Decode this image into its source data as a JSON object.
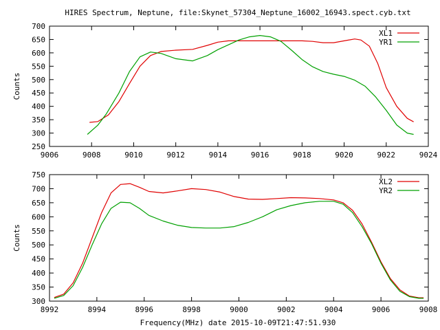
{
  "title": "HIRES Spectrum, Neptune, file:Skynet_57304_Neptune_16002_16943.spect.cyb.txt",
  "footer": "Frequency(MHz) date 2015-10-09T21:47:51.930",
  "colors": {
    "series1": "#e00000",
    "series2": "#00a000",
    "axis": "#000000",
    "background": "#ffffff"
  },
  "chart_data": [
    {
      "type": "line",
      "ylabel": "Counts",
      "xlabel": "",
      "xlim": [
        9006,
        9024
      ],
      "ylim": [
        250,
        700
      ],
      "xticks": [
        9006,
        9008,
        9010,
        9012,
        9014,
        9016,
        9018,
        9020,
        9022,
        9024
      ],
      "yticks": [
        250,
        300,
        350,
        400,
        450,
        500,
        550,
        600,
        650,
        700
      ],
      "grid": false,
      "legend": "top-right",
      "series": [
        {
          "name": "XL1",
          "color": "#e00000",
          "x": [
            9007.9,
            9008.3,
            9008.8,
            9009.3,
            9009.8,
            9010.3,
            9010.8,
            9011.3,
            9012,
            9012.8,
            9013.5,
            9014,
            9014.5,
            9015,
            9016,
            9017,
            9018,
            9018.5,
            9019,
            9019.5,
            9020,
            9020.5,
            9020.8,
            9021.2,
            9021.6,
            9022,
            9022.5,
            9023,
            9023.3
          ],
          "y": [
            340,
            343,
            368,
            418,
            485,
            550,
            590,
            605,
            610,
            613,
            628,
            640,
            645,
            645,
            645,
            645,
            645,
            643,
            638,
            638,
            645,
            652,
            648,
            625,
            560,
            470,
            400,
            355,
            342
          ]
        },
        {
          "name": "YR1",
          "color": "#00a000",
          "x": [
            9007.8,
            9008.3,
            9008.7,
            9009.3,
            9009.8,
            9010.3,
            9010.8,
            9011.3,
            9012,
            9012.8,
            9013.5,
            9014,
            9014.5,
            9015,
            9015.5,
            9016,
            9016.5,
            9017,
            9017.5,
            9018,
            9018.5,
            9019,
            9019.5,
            9020,
            9020.5,
            9021,
            9021.5,
            9022,
            9022.5,
            9023,
            9023.3
          ],
          "y": [
            295,
            330,
            372,
            450,
            530,
            585,
            603,
            598,
            578,
            570,
            590,
            612,
            630,
            648,
            660,
            665,
            660,
            643,
            610,
            575,
            548,
            530,
            520,
            512,
            498,
            475,
            435,
            385,
            330,
            300,
            295
          ]
        }
      ]
    },
    {
      "type": "line",
      "ylabel": "Counts",
      "xlabel": "Frequency(MHz) date 2015-10-09T21:47:51.930",
      "xlim": [
        8992,
        9008
      ],
      "ylim": [
        300,
        750
      ],
      "xticks": [
        8992,
        8994,
        8996,
        8998,
        9000,
        9002,
        9004,
        9006,
        9008
      ],
      "yticks": [
        300,
        350,
        400,
        450,
        500,
        550,
        600,
        650,
        700,
        750
      ],
      "grid": false,
      "legend": "top-right",
      "series": [
        {
          "name": "XL2",
          "color": "#e00000",
          "x": [
            8992.2,
            8992.6,
            8993,
            8993.4,
            8993.8,
            8994.2,
            8994.6,
            8995,
            8995.4,
            8995.8,
            8996.2,
            8996.8,
            8997.4,
            8998,
            8998.6,
            8999.2,
            8999.8,
            9000.4,
            9001,
            9001.6,
            9002.2,
            9002.8,
            9003.4,
            9004,
            9004.4,
            9004.8,
            9005.2,
            9005.6,
            9006,
            9006.4,
            9006.8,
            9007.2,
            9007.6,
            9007.8
          ],
          "y": [
            313,
            325,
            365,
            435,
            525,
            615,
            685,
            715,
            718,
            705,
            690,
            685,
            692,
            700,
            697,
            688,
            672,
            663,
            662,
            665,
            668,
            667,
            665,
            660,
            650,
            623,
            575,
            510,
            440,
            380,
            340,
            318,
            312,
            312
          ]
        },
        {
          "name": "YR2",
          "color": "#00a000",
          "x": [
            8992.2,
            8992.6,
            8993,
            8993.4,
            8993.8,
            8994.2,
            8994.6,
            8995,
            8995.4,
            8995.8,
            8996.2,
            8996.8,
            8997.4,
            8998,
            8998.6,
            8999.2,
            8999.8,
            9000.4,
            9001,
            9001.6,
            9002.2,
            9002.8,
            9003.4,
            9004,
            9004.4,
            9004.8,
            9005.2,
            9005.6,
            9006,
            9006.4,
            9006.8,
            9007.2,
            9007.6,
            9007.8
          ],
          "y": [
            310,
            320,
            355,
            420,
            500,
            575,
            630,
            652,
            650,
            630,
            605,
            585,
            570,
            562,
            560,
            560,
            565,
            580,
            600,
            625,
            640,
            650,
            655,
            655,
            645,
            615,
            565,
            505,
            435,
            375,
            335,
            316,
            310,
            310
          ]
        }
      ]
    }
  ]
}
